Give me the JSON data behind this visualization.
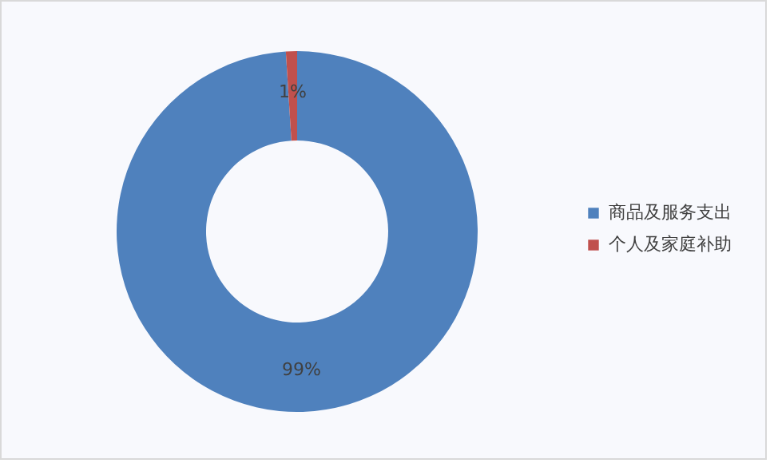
{
  "chart_data": {
    "type": "donut",
    "categories": [
      "商品及服务支出",
      "个人及家庭补助"
    ],
    "values": [
      99,
      1
    ],
    "colors": [
      "#4f81bd",
      "#c0504d"
    ],
    "value_labels": [
      "99%",
      "1%"
    ],
    "legend": "right"
  }
}
